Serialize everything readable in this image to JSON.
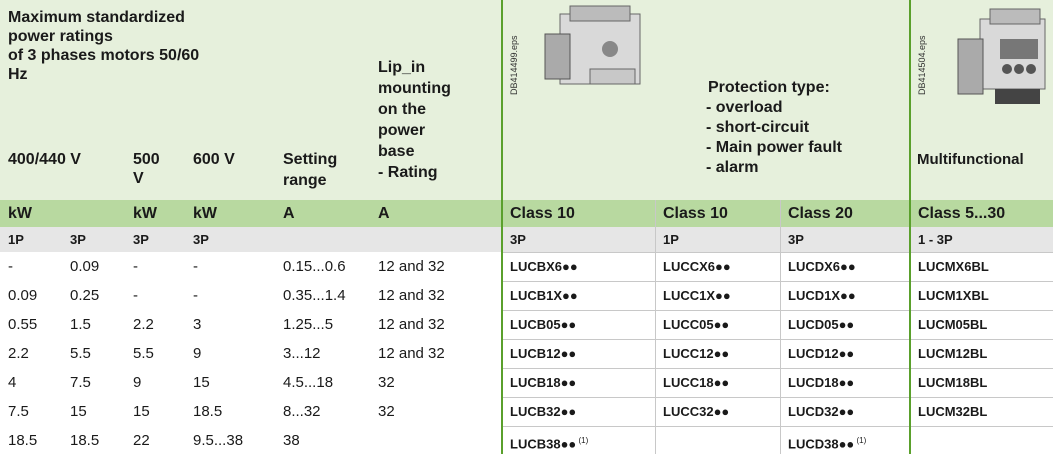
{
  "header": {
    "title": [
      "Maximum standardized",
      "power ratings",
      "of 3 phases motors 50/60",
      "Hz"
    ],
    "voltages": [
      "400/440 V",
      "500 V",
      "600 V"
    ],
    "setting_range": [
      "Setting",
      "range"
    ],
    "mounting": [
      "Lip_in",
      "mounting",
      "on the",
      "power",
      "base",
      "- Rating"
    ],
    "image_ids": [
      "DB414499.eps",
      "DB414504.eps"
    ],
    "protection": [
      "Protection type:",
      "- overload",
      "- short-circuit",
      "- Main power fault",
      "- alarm"
    ],
    "multifunctional": "Multifunctional"
  },
  "table": {
    "units": [
      "kW",
      "kW",
      "kW",
      "A",
      "A",
      "Class 10",
      "Class 10",
      "Class 20",
      "Class 5...30"
    ],
    "phases": [
      "1P",
      "3P",
      "3P",
      "3P",
      null,
      null,
      "3P",
      "1P",
      "3P",
      " 1 - 3P"
    ],
    "rows": [
      [
        "-",
        "0.09",
        "-",
        "-",
        "0.15...0.6",
        "12 and 32",
        "LUCBX6●●",
        "LUCCX6●●",
        "LUCDX6●●",
        "LUCMX6BL"
      ],
      [
        "0.09",
        "0.25",
        "-",
        "-",
        "0.35...1.4",
        "12 and 32",
        "LUCB1X●●",
        "LUCC1X●●",
        "LUCD1X●●",
        "LUCM1XBL"
      ],
      [
        "0.55",
        "1.5",
        "2.2",
        "3",
        "1.25...5",
        "12 and 32",
        "LUCB05●●",
        "LUCC05●●",
        "LUCD05●●",
        "LUCM05BL"
      ],
      [
        "2.2",
        "5.5",
        "5.5",
        "9",
        "3...12",
        "12 and 32",
        "LUCB12●●",
        "LUCC12●●",
        "LUCD12●●",
        "LUCM12BL"
      ],
      [
        "4",
        "7.5",
        "9",
        "15",
        "4.5...18",
        "32",
        "LUCB18●●",
        "LUCC18●●",
        "LUCD18●●",
        "LUCM18BL"
      ],
      [
        "7.5",
        "15",
        "15",
        "18.5",
        "8...32",
        "32",
        "LUCB32●●",
        "LUCC32●●",
        "LUCD32●●",
        "LUCM32BL"
      ],
      [
        "18.5",
        "18.5",
        "22",
        "9.5...38",
        "38",
        null,
        {
          "text": "LUCB38●●",
          "note": "(1)"
        },
        null,
        {
          "text": "LUCD38●●",
          "note": "(1)"
        },
        null
      ]
    ]
  }
}
